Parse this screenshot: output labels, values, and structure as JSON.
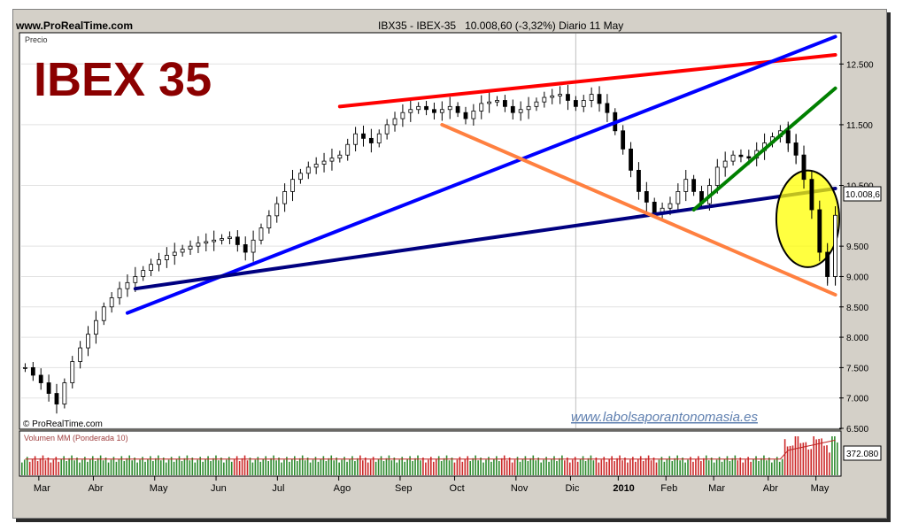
{
  "header": {
    "site": "www.ProRealTime.com",
    "instrument": "IBX35 - IBEX-35",
    "summary": "10.008,60 (-3,32%)   Diario  11 May"
  },
  "price_panel": {
    "label": "Precio",
    "title": "IBEX 35",
    "copyright": "© ProRealTime.com",
    "watermark": "www.labolsaporantonomasia.es",
    "last_price_label": "10.008,6"
  },
  "volume_panel": {
    "label": "Volumen MM (Ponderada 10)",
    "last_volume_label": "372.080"
  },
  "colors": {
    "title": "#8b0000",
    "red_line": "#ff0000",
    "blue_line": "#0000ff",
    "navy_line": "#000080",
    "green_line": "#008000",
    "orange_line": "#ff8040",
    "highlight": "#ffff00",
    "volume_up": "#2e8b2e",
    "volume_down": "#cc2a2a"
  },
  "chart_data": {
    "type": "candlestick",
    "x_tick_labels": [
      "Mar",
      "Abr",
      "May",
      "Jun",
      "Jul",
      "Ago",
      "Sep",
      "Oct",
      "Nov",
      "Dic",
      "2010",
      "Feb",
      "Mar",
      "Abr",
      "May"
    ],
    "y_tick_labels": [
      "6.500",
      "7.000",
      "7.500",
      "8.000",
      "8.500",
      "9.000",
      "9.500",
      "10.500",
      "11.500",
      "12.500"
    ],
    "y_ticks": [
      6500,
      7000,
      7500,
      8000,
      8500,
      9000,
      9500,
      10500,
      11500,
      12500
    ],
    "ylim": [
      6500,
      13000
    ],
    "last_price": 10008.6,
    "price_anchors": [
      [
        0,
        7500
      ],
      [
        2,
        7250
      ],
      [
        4,
        6900
      ],
      [
        6,
        7600
      ],
      [
        8,
        8050
      ],
      [
        10,
        8500
      ],
      [
        12,
        8800
      ],
      [
        14,
        9000
      ],
      [
        16,
        9200
      ],
      [
        18,
        9350
      ],
      [
        20,
        9450
      ],
      [
        22,
        9550
      ],
      [
        24,
        9600
      ],
      [
        26,
        9650
      ],
      [
        28,
        9400
      ],
      [
        30,
        9800
      ],
      [
        32,
        10200
      ],
      [
        34,
        10600
      ],
      [
        36,
        10800
      ],
      [
        38,
        10900
      ],
      [
        40,
        11000
      ],
      [
        42,
        11350
      ],
      [
        44,
        11200
      ],
      [
        46,
        11500
      ],
      [
        48,
        11700
      ],
      [
        50,
        11800
      ],
      [
        52,
        11700
      ],
      [
        54,
        11800
      ],
      [
        56,
        11600
      ],
      [
        58,
        11850
      ],
      [
        60,
        11900
      ],
      [
        62,
        11700
      ],
      [
        64,
        11800
      ],
      [
        66,
        11950
      ],
      [
        68,
        12000
      ],
      [
        70,
        11800
      ],
      [
        72,
        12000
      ],
      [
        74,
        11700
      ],
      [
        76,
        11100
      ],
      [
        78,
        10400
      ],
      [
        80,
        10050
      ],
      [
        82,
        10200
      ],
      [
        84,
        10600
      ],
      [
        86,
        10200
      ],
      [
        88,
        10800
      ],
      [
        90,
        11000
      ],
      [
        92,
        10950
      ],
      [
        94,
        11200
      ],
      [
        96,
        11400
      ],
      [
        98,
        11000
      ],
      [
        99,
        10600
      ],
      [
        100,
        10100
      ],
      [
        101,
        9400
      ],
      [
        102,
        9000
      ],
      [
        103,
        10008
      ]
    ],
    "volume_level": 0.45,
    "trendlines": [
      {
        "color": "red",
        "from": [
          40,
          11800
        ],
        "to": [
          103,
          12650
        ]
      },
      {
        "color": "blue",
        "from": [
          13,
          8400
        ],
        "to": [
          103,
          12950
        ]
      },
      {
        "color": "navy",
        "from": [
          14,
          8800
        ],
        "to": [
          103,
          10450
        ]
      },
      {
        "color": "green",
        "from": [
          85,
          10100
        ],
        "to": [
          103,
          12100
        ]
      },
      {
        "color": "orange",
        "from": [
          53,
          11500
        ],
        "to": [
          103,
          8700
        ]
      }
    ],
    "highlight_ellipse": {
      "cx": 99.5,
      "cy": 9950,
      "rx_days": 4,
      "ry": 1300
    }
  }
}
